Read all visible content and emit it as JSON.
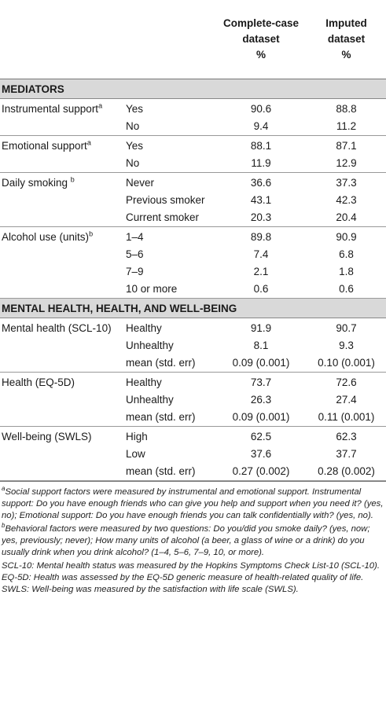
{
  "header": {
    "col2": "",
    "col3": [
      "Complete-case",
      "dataset",
      "%"
    ],
    "col4": [
      "Imputed",
      "dataset",
      "%"
    ]
  },
  "sections": [
    {
      "title": "MEDIATORS",
      "groups": [
        {
          "label": "Instrumental support",
          "sup": "a",
          "rows": [
            {
              "cat": "Yes",
              "cc": "90.6",
              "imp": "88.8"
            },
            {
              "cat": "No",
              "cc": "9.4",
              "imp": "11.2"
            }
          ]
        },
        {
          "label": "Emotional support",
          "sup": "a",
          "rows": [
            {
              "cat": "Yes",
              "cc": "88.1",
              "imp": "87.1"
            },
            {
              "cat": "No",
              "cc": "11.9",
              "imp": "12.9"
            }
          ]
        },
        {
          "label": "Daily smoking ",
          "sup": "b",
          "rows": [
            {
              "cat": "Never",
              "cc": "36.6",
              "imp": "37.3"
            },
            {
              "cat": "Previous smoker",
              "cc": "43.1",
              "imp": "42.3"
            },
            {
              "cat": "Current smoker",
              "cc": "20.3",
              "imp": "20.4"
            }
          ]
        },
        {
          "label": "Alcohol use (units)",
          "sup": "b",
          "rows": [
            {
              "cat": "1–4",
              "cc": "89.8",
              "imp": "90.9"
            },
            {
              "cat": "5–6",
              "cc": "7.4",
              "imp": "6.8"
            },
            {
              "cat": "7–9",
              "cc": "2.1",
              "imp": "1.8"
            },
            {
              "cat": "10 or more",
              "cc": "0.6",
              "imp": "0.6"
            }
          ]
        }
      ]
    },
    {
      "title": "MENTAL HEALTH, HEALTH, AND WELL-BEING",
      "groups": [
        {
          "label": "Mental health (SCL-10)",
          "sup": "",
          "rows": [
            {
              "cat": "Healthy",
              "cc": "91.9",
              "imp": "90.7"
            },
            {
              "cat": "Unhealthy",
              "cc": "8.1",
              "imp": "9.3"
            },
            {
              "cat": "mean (std. err)",
              "cc": "0.09 (0.001)",
              "imp": "0.10 (0.001)"
            }
          ]
        },
        {
          "label": "Health (EQ-5D)",
          "sup": "",
          "rows": [
            {
              "cat": "Healthy",
              "cc": "73.7",
              "imp": "72.6"
            },
            {
              "cat": "Unhealthy",
              "cc": "26.3",
              "imp": "27.4"
            },
            {
              "cat": "mean (std. err)",
              "cc": "0.09 (0.001)",
              "imp": "0.11 (0.001)"
            }
          ]
        },
        {
          "label": "Well-being (SWLS)",
          "sup": "",
          "rows": [
            {
              "cat": "High",
              "cc": "62.5",
              "imp": "62.3"
            },
            {
              "cat": "Low",
              "cc": "37.6",
              "imp": "37.7"
            },
            {
              "cat": "mean (std. err)",
              "cc": "0.27 (0.002)",
              "imp": "0.28 (0.002)"
            }
          ]
        }
      ]
    }
  ],
  "notes": [
    {
      "sup": "a",
      "text": "Social support factors were measured by instrumental and emotional support. Instrumental support: Do you have enough friends who can give you help and support when you need it? (yes, no); Emotional support: Do you have enough friends you can talk confidentially with? (yes, no)."
    },
    {
      "sup": "b",
      "text": "Behavioral factors were measured by two questions: Do you/did you smoke daily? (yes, now; yes, previously; never); How many units of alcohol (a beer, a glass of wine or a drink) do you usually drink when you drink alcohol? (1–4, 5–6, 7–9, 10, or more)."
    },
    {
      "sup": "",
      "text": "SCL-10: Mental health status was measured by the Hopkins Symptoms Check List-10 (SCL-10). EQ-5D: Health was assessed by the EQ-5D generic measure of health-related quality of life. SWLS: Well-being was measured by the satisfaction with life scale (SWLS)."
    }
  ]
}
